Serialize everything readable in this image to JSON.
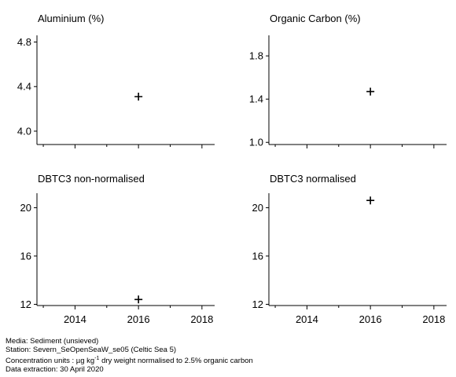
{
  "chart_data": [
    {
      "type": "scatter",
      "title": "Aluminium (%)",
      "x": [
        2016
      ],
      "y": [
        4.31
      ],
      "xlim": [
        2012.8,
        2018.4
      ],
      "ylim": [
        3.88,
        4.86
      ],
      "yticks": [
        4.0,
        4.4,
        4.8
      ],
      "ytick_labels": [
        "4.0",
        "4.4",
        "4.8"
      ],
      "xticks": [
        2014,
        2016,
        2018
      ],
      "xtick_labels": [],
      "marker": "plus"
    },
    {
      "type": "scatter",
      "title": "Organic Carbon (%)",
      "x": [
        2016
      ],
      "y": [
        1.47
      ],
      "xlim": [
        2012.8,
        2018.4
      ],
      "ylim": [
        0.98,
        1.99
      ],
      "yticks": [
        1.0,
        1.4,
        1.8
      ],
      "ytick_labels": [
        "1.0",
        "1.4",
        "1.8"
      ],
      "xticks": [
        2014,
        2016,
        2018
      ],
      "xtick_labels": [],
      "marker": "plus"
    },
    {
      "type": "scatter",
      "title": "DBTC3 non-normalised",
      "x": [
        2016
      ],
      "y": [
        12.4
      ],
      "xlim": [
        2012.8,
        2018.4
      ],
      "ylim": [
        11.9,
        21.2
      ],
      "yticks": [
        12,
        16,
        20
      ],
      "ytick_labels": [
        "12",
        "16",
        "20"
      ],
      "xticks": [
        2014,
        2016,
        2018
      ],
      "xtick_labels": [
        "2014",
        "2016",
        "2018"
      ],
      "marker": "plus"
    },
    {
      "type": "scatter",
      "title": "DBTC3 normalised",
      "x": [
        2016
      ],
      "y": [
        20.6
      ],
      "xlim": [
        2012.8,
        2018.4
      ],
      "ylim": [
        11.9,
        21.2
      ],
      "yticks": [
        12,
        16,
        20
      ],
      "ytick_labels": [
        "12",
        "16",
        "20"
      ],
      "xticks": [
        2014,
        2016,
        2018
      ],
      "xtick_labels": [
        "2014",
        "2016",
        "2018"
      ],
      "marker": "plus"
    }
  ],
  "footer": {
    "media": "Media: Sediment (unsieved)",
    "station": "Station: Severn_SeOpenSeaW_se05 (Celtic Sea 5)",
    "units_prefix": "Concentration units : µg kg",
    "units_sup": "-1",
    "units_suffix": " dry weight normalised to 2.5% organic carbon",
    "extraction": "Data extraction: 30 April 2020"
  }
}
